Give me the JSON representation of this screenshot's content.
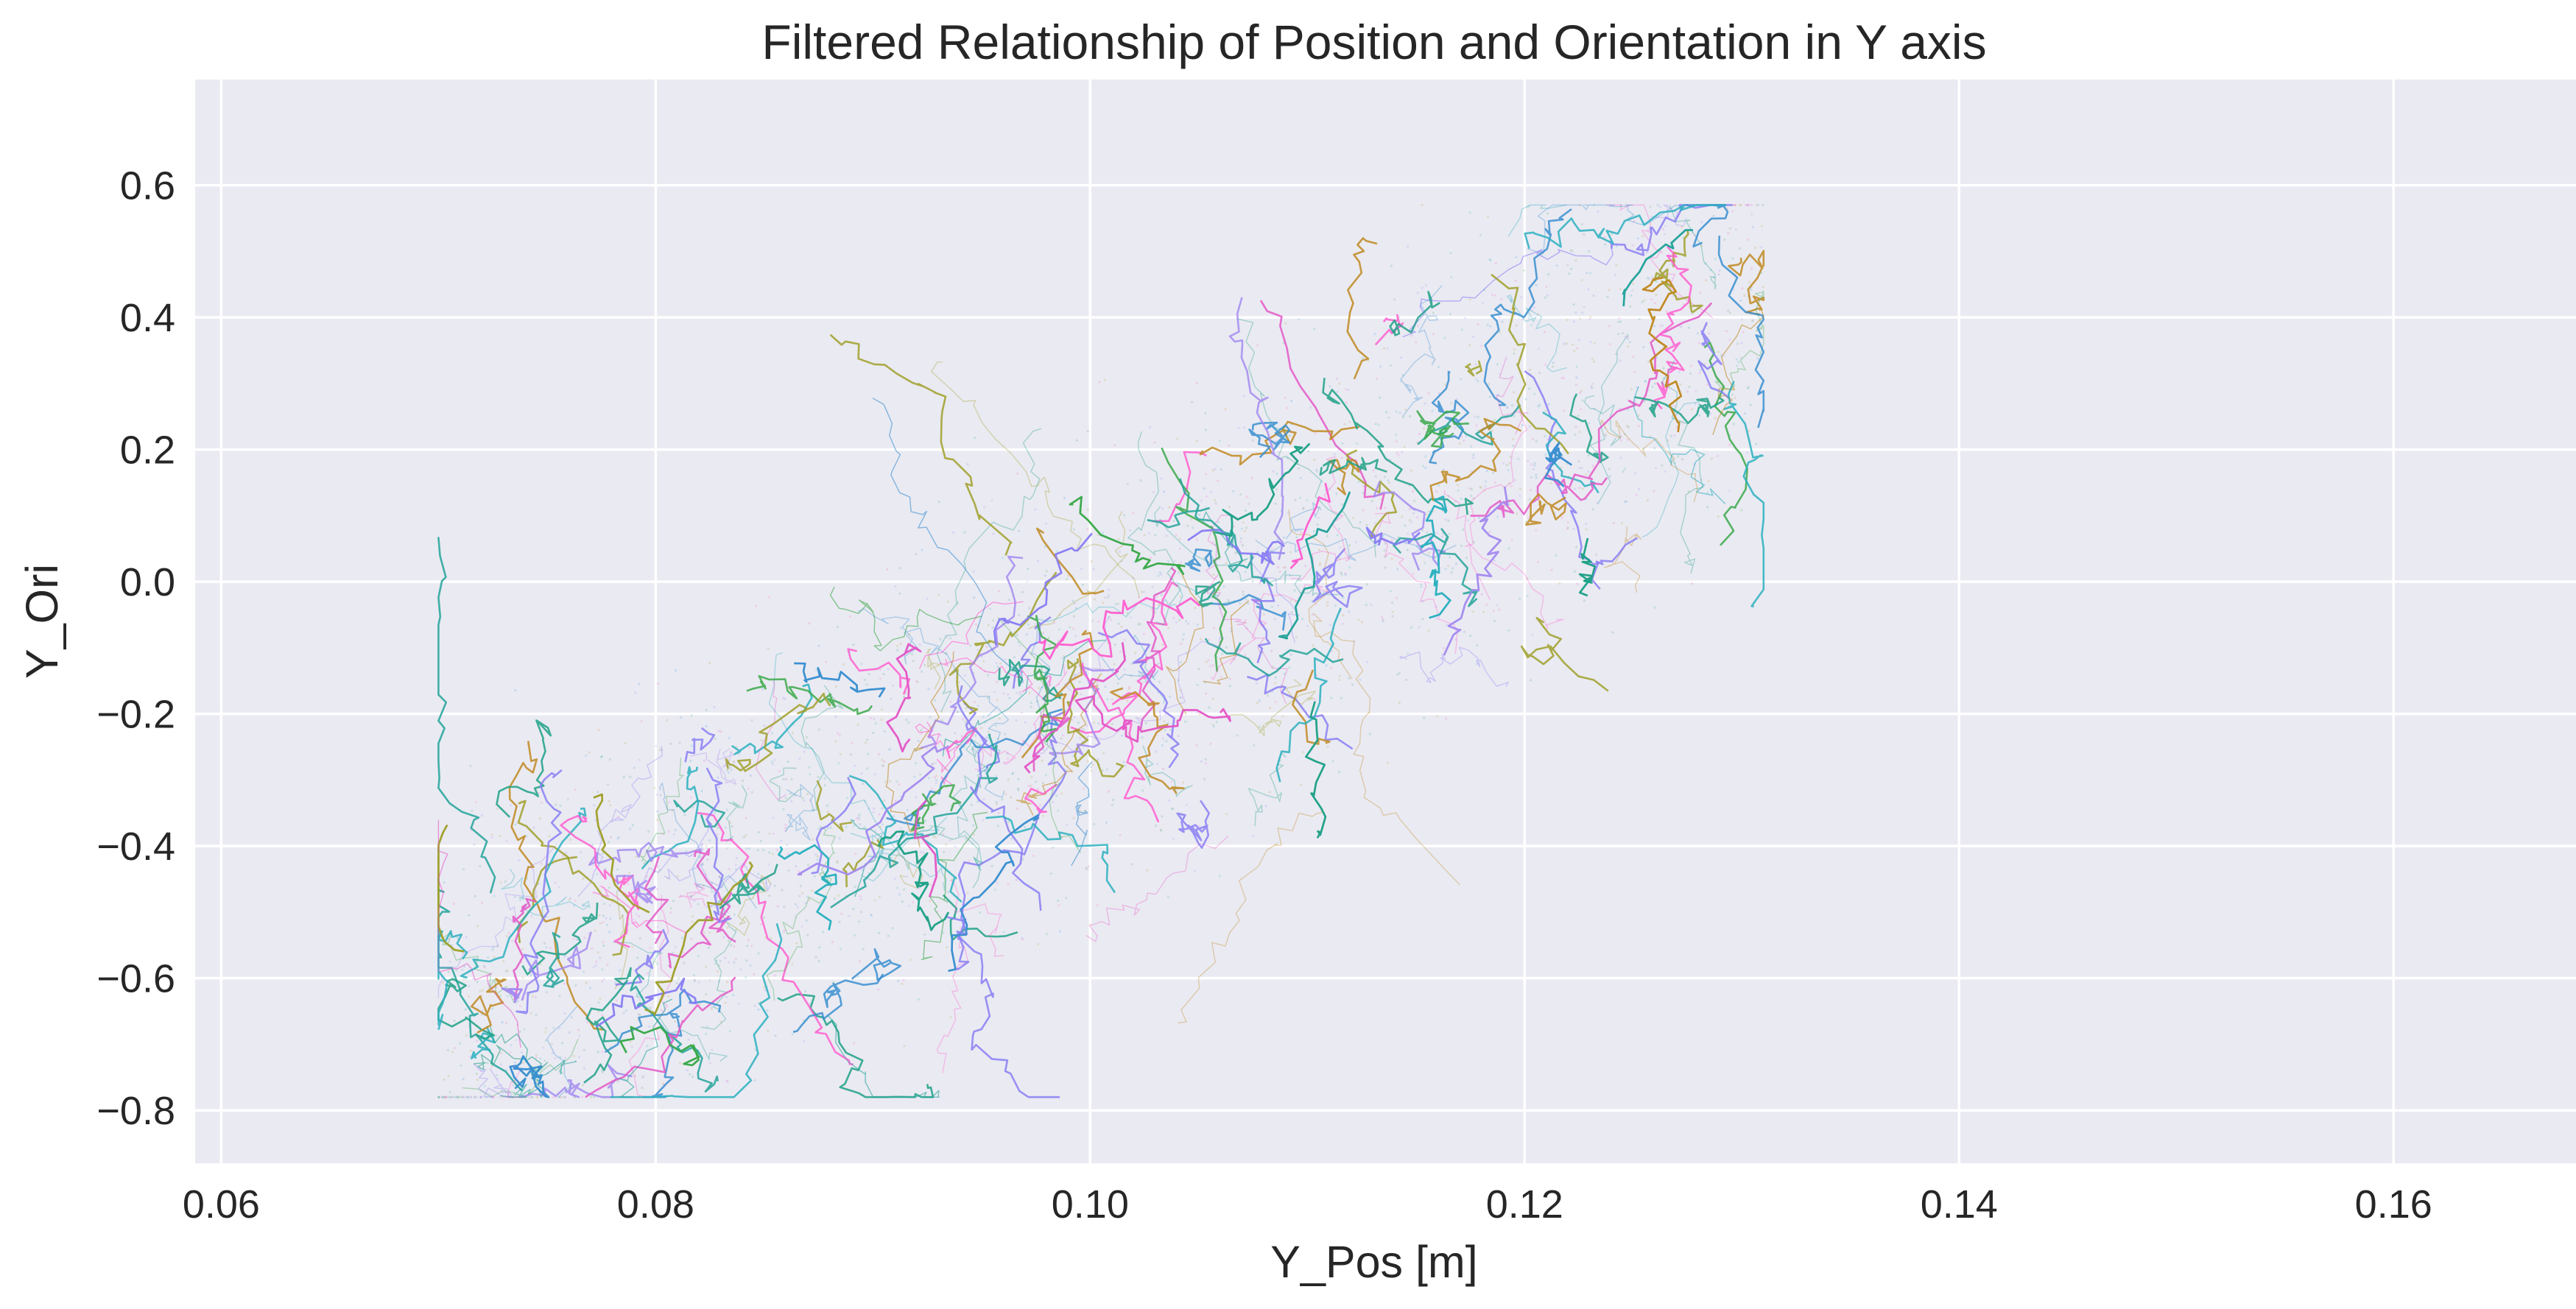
{
  "chart_data": {
    "type": "scatter",
    "title": "Filtered Relationship of Position and Orientation in Y axis",
    "xlabel": "Y_Pos [m]",
    "ylabel": "Y_Ori",
    "xlim": [
      0.0588,
      0.1684
    ],
    "ylim": [
      -0.88,
      0.76
    ],
    "xticks": [
      {
        "value": 0.06,
        "label": "0.06"
      },
      {
        "value": 0.08,
        "label": "0.08"
      },
      {
        "value": 0.1,
        "label": "0.10"
      },
      {
        "value": 0.12,
        "label": "0.12"
      },
      {
        "value": 0.14,
        "label": "0.14"
      },
      {
        "value": 0.16,
        "label": "0.16"
      }
    ],
    "yticks": [
      {
        "value": 0.6,
        "label": "0.6"
      },
      {
        "value": 0.4,
        "label": "0.4"
      },
      {
        "value": 0.2,
        "label": "0.2"
      },
      {
        "value": 0.0,
        "label": "0.0"
      },
      {
        "value": -0.2,
        "label": "−0.2"
      },
      {
        "value": -0.4,
        "label": "−0.4"
      },
      {
        "value": -0.6,
        "label": "−0.6"
      },
      {
        "value": -0.8,
        "label": "−0.8"
      }
    ],
    "grid": true,
    "background_color": "#eaeaf2",
    "grid_color": "#ffffff",
    "palette": [
      "#1fa187",
      "#22a39a",
      "#3ba94a",
      "#c08a22",
      "#a0a02c",
      "#e458c8",
      "#ff5fd0",
      "#a58cf0",
      "#8a7ff5",
      "#3a8fd0",
      "#2bb0c0"
    ],
    "point_cloud": {
      "x_range": [
        0.07,
        0.131
      ],
      "y_range": [
        -0.78,
        0.57
      ],
      "trend": {
        "x0": 0.07,
        "y0": -0.7,
        "x1": 0.13,
        "y1": 0.42
      },
      "spread": 0.16
    }
  }
}
